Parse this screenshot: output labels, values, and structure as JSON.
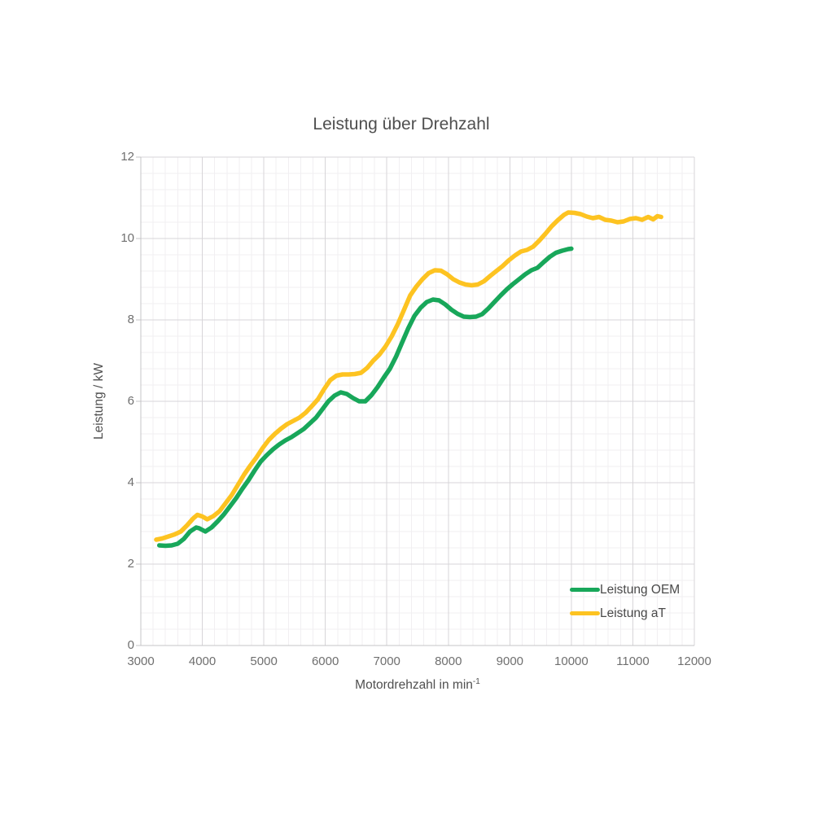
{
  "page": {
    "background": "#ffffff"
  },
  "colors": {
    "title_text": "#4f4f4f",
    "axis_title_text": "#4f4f4f",
    "tick_text": "#6f6f6f",
    "legend_text": "#4a4a4a",
    "grid_major": "#d7d5d8",
    "grid_minor": "#f1eff2",
    "axis_line": "#c6c4c7",
    "series_oem": "#18a75a",
    "series_at": "#fdc321"
  },
  "chart_data": {
    "type": "line",
    "title": "Leistung über Drehzahl",
    "xlabel": "Motordrehzahl in min⁻¹",
    "xlabel_base": "Motordrehzahl in min",
    "xlabel_sup": "-1",
    "ylabel": "Leistung / kW",
    "xlim": [
      3000,
      12000
    ],
    "ylim": [
      0,
      12
    ],
    "x_ticks": [
      3000,
      4000,
      5000,
      6000,
      7000,
      8000,
      9000,
      10000,
      11000,
      12000
    ],
    "y_ticks": [
      0,
      2,
      4,
      6,
      8,
      10,
      12
    ],
    "x_minor_step": 200,
    "y_minor_step": 0.4,
    "grid": true,
    "legend_position": "inside-bottom-right",
    "series": [
      {
        "name": "Leistung OEM",
        "color": "#18a75a",
        "points": [
          [
            3300,
            2.46
          ],
          [
            3400,
            2.45
          ],
          [
            3500,
            2.46
          ],
          [
            3600,
            2.5
          ],
          [
            3700,
            2.62
          ],
          [
            3800,
            2.8
          ],
          [
            3900,
            2.9
          ],
          [
            3950,
            2.88
          ],
          [
            4050,
            2.8
          ],
          [
            4150,
            2.9
          ],
          [
            4250,
            3.05
          ],
          [
            4350,
            3.22
          ],
          [
            4450,
            3.42
          ],
          [
            4550,
            3.62
          ],
          [
            4650,
            3.85
          ],
          [
            4750,
            4.06
          ],
          [
            4850,
            4.3
          ],
          [
            4950,
            4.52
          ],
          [
            5050,
            4.68
          ],
          [
            5150,
            4.82
          ],
          [
            5250,
            4.94
          ],
          [
            5350,
            5.04
          ],
          [
            5450,
            5.12
          ],
          [
            5550,
            5.22
          ],
          [
            5650,
            5.32
          ],
          [
            5750,
            5.46
          ],
          [
            5850,
            5.6
          ],
          [
            5950,
            5.8
          ],
          [
            6050,
            6.0
          ],
          [
            6150,
            6.14
          ],
          [
            6250,
            6.22
          ],
          [
            6350,
            6.18
          ],
          [
            6450,
            6.08
          ],
          [
            6550,
            6.0
          ],
          [
            6650,
            6.0
          ],
          [
            6750,
            6.15
          ],
          [
            6850,
            6.35
          ],
          [
            6950,
            6.58
          ],
          [
            7050,
            6.8
          ],
          [
            7150,
            7.1
          ],
          [
            7250,
            7.45
          ],
          [
            7350,
            7.8
          ],
          [
            7450,
            8.1
          ],
          [
            7550,
            8.3
          ],
          [
            7650,
            8.44
          ],
          [
            7750,
            8.5
          ],
          [
            7850,
            8.48
          ],
          [
            7950,
            8.38
          ],
          [
            8050,
            8.25
          ],
          [
            8150,
            8.15
          ],
          [
            8250,
            8.08
          ],
          [
            8350,
            8.07
          ],
          [
            8450,
            8.08
          ],
          [
            8550,
            8.14
          ],
          [
            8650,
            8.28
          ],
          [
            8750,
            8.44
          ],
          [
            8850,
            8.6
          ],
          [
            8950,
            8.75
          ],
          [
            9050,
            8.88
          ],
          [
            9150,
            9.0
          ],
          [
            9250,
            9.12
          ],
          [
            9350,
            9.22
          ],
          [
            9450,
            9.28
          ],
          [
            9550,
            9.42
          ],
          [
            9650,
            9.55
          ],
          [
            9750,
            9.65
          ],
          [
            9850,
            9.7
          ],
          [
            9950,
            9.74
          ],
          [
            10000,
            9.75
          ]
        ]
      },
      {
        "name": "Leistung aT",
        "color": "#fdc321",
        "points": [
          [
            3250,
            2.6
          ],
          [
            3350,
            2.63
          ],
          [
            3450,
            2.68
          ],
          [
            3550,
            2.73
          ],
          [
            3650,
            2.8
          ],
          [
            3750,
            2.95
          ],
          [
            3850,
            3.12
          ],
          [
            3920,
            3.21
          ],
          [
            4000,
            3.17
          ],
          [
            4080,
            3.1
          ],
          [
            4180,
            3.18
          ],
          [
            4280,
            3.3
          ],
          [
            4380,
            3.5
          ],
          [
            4480,
            3.7
          ],
          [
            4580,
            3.95
          ],
          [
            4680,
            4.2
          ],
          [
            4780,
            4.42
          ],
          [
            4880,
            4.62
          ],
          [
            4980,
            4.85
          ],
          [
            5080,
            5.05
          ],
          [
            5180,
            5.2
          ],
          [
            5280,
            5.33
          ],
          [
            5380,
            5.44
          ],
          [
            5480,
            5.52
          ],
          [
            5580,
            5.6
          ],
          [
            5680,
            5.72
          ],
          [
            5780,
            5.88
          ],
          [
            5880,
            6.05
          ],
          [
            5980,
            6.3
          ],
          [
            6080,
            6.52
          ],
          [
            6180,
            6.63
          ],
          [
            6280,
            6.66
          ],
          [
            6380,
            6.66
          ],
          [
            6480,
            6.67
          ],
          [
            6580,
            6.7
          ],
          [
            6680,
            6.82
          ],
          [
            6780,
            7.0
          ],
          [
            6880,
            7.15
          ],
          [
            6980,
            7.35
          ],
          [
            7080,
            7.6
          ],
          [
            7180,
            7.9
          ],
          [
            7280,
            8.25
          ],
          [
            7380,
            8.6
          ],
          [
            7480,
            8.82
          ],
          [
            7580,
            9.0
          ],
          [
            7680,
            9.15
          ],
          [
            7780,
            9.22
          ],
          [
            7880,
            9.21
          ],
          [
            7980,
            9.12
          ],
          [
            8080,
            9.0
          ],
          [
            8180,
            8.92
          ],
          [
            8280,
            8.87
          ],
          [
            8380,
            8.85
          ],
          [
            8480,
            8.87
          ],
          [
            8580,
            8.95
          ],
          [
            8680,
            9.08
          ],
          [
            8780,
            9.2
          ],
          [
            8880,
            9.32
          ],
          [
            8980,
            9.46
          ],
          [
            9080,
            9.58
          ],
          [
            9180,
            9.68
          ],
          [
            9280,
            9.72
          ],
          [
            9380,
            9.8
          ],
          [
            9480,
            9.95
          ],
          [
            9580,
            10.12
          ],
          [
            9680,
            10.3
          ],
          [
            9780,
            10.45
          ],
          [
            9880,
            10.58
          ],
          [
            9950,
            10.64
          ],
          [
            10050,
            10.63
          ],
          [
            10150,
            10.6
          ],
          [
            10250,
            10.54
          ],
          [
            10350,
            10.5
          ],
          [
            10450,
            10.53
          ],
          [
            10550,
            10.46
          ],
          [
            10650,
            10.44
          ],
          [
            10750,
            10.4
          ],
          [
            10850,
            10.42
          ],
          [
            10950,
            10.48
          ],
          [
            11050,
            10.5
          ],
          [
            11150,
            10.46
          ],
          [
            11250,
            10.53
          ],
          [
            11330,
            10.47
          ],
          [
            11400,
            10.55
          ],
          [
            11460,
            10.53
          ]
        ]
      }
    ]
  }
}
